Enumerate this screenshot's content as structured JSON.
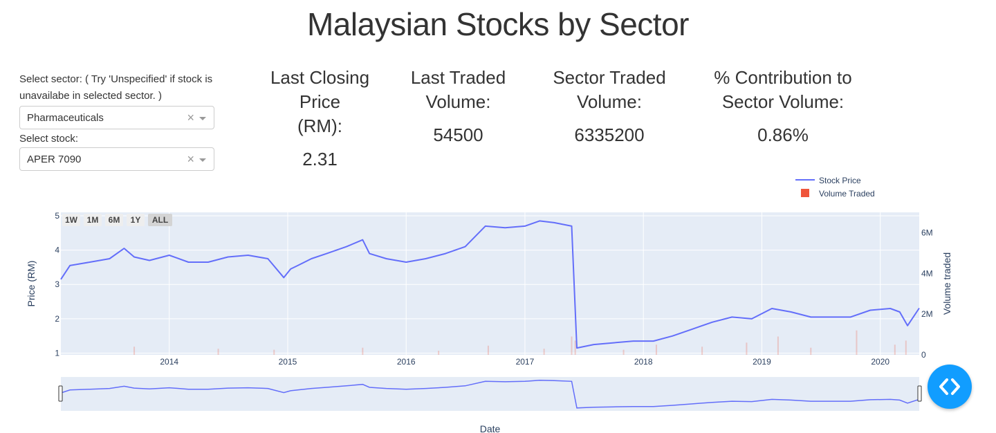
{
  "page": {
    "title": "Malaysian Stocks by Sector"
  },
  "controls": {
    "sector_label": "Select sector: ( Try 'Unspecified' if stock is unavailabe in selected sector. )",
    "sector_value": "Pharmaceuticals",
    "stock_label": "Select stock:",
    "stock_value": "APER 7090",
    "clear_glyph": "×"
  },
  "stats": [
    {
      "label_lines": [
        "Last Closing Price",
        "(RM):"
      ],
      "value": "2.31"
    },
    {
      "label_lines": [
        "Last Traded",
        "Volume:"
      ],
      "value": "54500"
    },
    {
      "label_lines": [
        "Sector Traded",
        "Volume:"
      ],
      "value": "6335200"
    },
    {
      "label_lines": [
        "% Contribution to",
        "Sector Volume:"
      ],
      "value": "0.86%"
    }
  ],
  "range_buttons": [
    "1W",
    "1M",
    "6M",
    "1Y",
    "ALL"
  ],
  "active_range": "ALL",
  "colors": {
    "price_line": "#636efa",
    "volume_bar": "#ef553b",
    "plot_bg": "#e5ecf6",
    "fab": "#119dff"
  },
  "fab": {
    "icon": "code-icon"
  },
  "chart_data": {
    "type": "line",
    "title": "",
    "xlabel": "Date",
    "ylabel": "Price (RM)",
    "y2label": "Volume traded",
    "x_range": [
      "2013-02-01",
      "2020-04-30"
    ],
    "ylim": [
      0.95,
      5.1
    ],
    "y2lim": [
      0,
      7000000
    ],
    "x_ticks": [
      "2014",
      "2015",
      "2016",
      "2017",
      "2018",
      "2019",
      "2020"
    ],
    "y_ticks": [
      "1",
      "2",
      "3",
      "4",
      "5"
    ],
    "y2_ticks": [
      "0",
      "2M",
      "4M",
      "6M"
    ],
    "legend_position": "top-right",
    "grid": true,
    "rangeslider": true,
    "series": [
      {
        "name": "Stock Price",
        "type": "line",
        "x": [
          "2013-02-01",
          "2013-03-01",
          "2013-05-01",
          "2013-07-01",
          "2013-08-15",
          "2013-09-15",
          "2013-11-01",
          "2014-01-01",
          "2014-03-01",
          "2014-05-01",
          "2014-07-01",
          "2014-09-01",
          "2014-11-01",
          "2014-12-20",
          "2015-01-10",
          "2015-02-01",
          "2015-03-15",
          "2015-05-01",
          "2015-07-01",
          "2015-08-20",
          "2015-09-10",
          "2015-11-01",
          "2016-01-01",
          "2016-03-01",
          "2016-05-01",
          "2016-07-01",
          "2016-09-01",
          "2016-11-01",
          "2017-01-01",
          "2017-02-15",
          "2017-04-01",
          "2017-05-25",
          "2017-06-10",
          "2017-08-01",
          "2017-10-01",
          "2017-12-01",
          "2018-02-01",
          "2018-04-01",
          "2018-06-01",
          "2018-08-01",
          "2018-10-01",
          "2018-12-01",
          "2019-02-01",
          "2019-04-01",
          "2019-06-01",
          "2019-08-01",
          "2019-10-01",
          "2019-12-01",
          "2020-02-01",
          "2020-03-01",
          "2020-03-25",
          "2020-04-30"
        ],
        "y": [
          3.15,
          3.55,
          3.65,
          3.75,
          4.05,
          3.8,
          3.7,
          3.85,
          3.65,
          3.65,
          3.8,
          3.85,
          3.75,
          3.2,
          3.45,
          3.55,
          3.75,
          3.9,
          4.1,
          4.3,
          3.9,
          3.75,
          3.65,
          3.75,
          3.9,
          4.1,
          4.7,
          4.65,
          4.7,
          4.85,
          4.8,
          4.7,
          1.15,
          1.25,
          1.3,
          1.35,
          1.35,
          1.5,
          1.7,
          1.9,
          2.05,
          2.0,
          2.3,
          2.2,
          2.05,
          2.05,
          2.05,
          2.25,
          2.3,
          2.2,
          1.8,
          2.31
        ]
      },
      {
        "name": "Volume Traded",
        "type": "bar",
        "x": [
          "2013-09-15",
          "2014-06-01",
          "2014-11-20",
          "2015-08-20",
          "2016-04-10",
          "2016-09-10",
          "2017-03-01",
          "2017-05-25",
          "2017-06-05",
          "2017-11-01",
          "2018-02-10",
          "2018-07-01",
          "2018-11-15",
          "2019-02-20",
          "2019-06-01",
          "2019-10-20",
          "2020-02-15",
          "2020-03-20"
        ],
        "values": [
          400000,
          300000,
          250000,
          350000,
          200000,
          450000,
          300000,
          900000,
          700000,
          250000,
          500000,
          400000,
          600000,
          900000,
          350000,
          1200000,
          500000,
          700000
        ]
      }
    ]
  }
}
